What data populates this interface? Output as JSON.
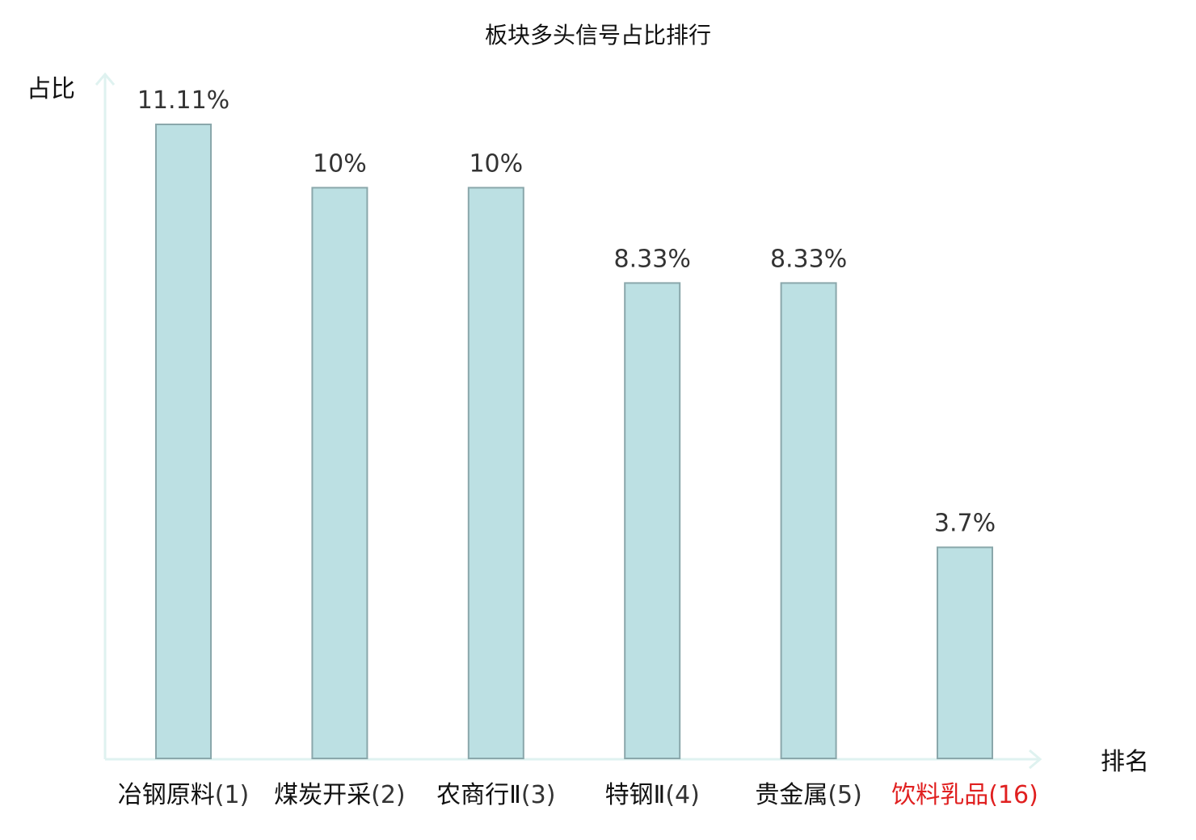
{
  "chart_data": {
    "type": "bar",
    "title": "板块多头信号占比排行",
    "ylabel": "占比",
    "xlabel": "排名",
    "ylim": [
      0,
      12
    ],
    "grid": false,
    "categories": [
      {
        "name": "冶钢原料",
        "rank": "(1)",
        "highlight": false
      },
      {
        "name": "煤炭开采",
        "rank": "(2)",
        "highlight": false
      },
      {
        "name": "农商行Ⅱ",
        "rank": "(3)",
        "highlight": false
      },
      {
        "name": "特钢Ⅱ",
        "rank": "(4)",
        "highlight": false
      },
      {
        "name": "贵金属",
        "rank": "(5)",
        "highlight": false
      },
      {
        "name": "饮料乳品",
        "rank": "(16)",
        "highlight": true
      }
    ],
    "values": [
      11.11,
      10,
      10,
      8.33,
      8.33,
      3.7
    ],
    "value_labels": [
      "11.11%",
      "10%",
      "10%",
      "8.33%",
      "8.33%",
      "3.7%"
    ]
  },
  "colors": {
    "bar_fill": "#bce0e3",
    "bar_stroke": "#8aa7ab",
    "axis": "#dff2f0",
    "text": "#111111",
    "value_text": "#333333",
    "highlight_text": "#e02020",
    "rank_text": "#333333"
  }
}
